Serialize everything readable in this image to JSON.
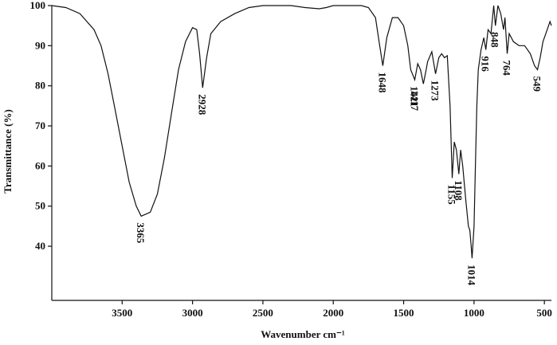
{
  "chart_data": {
    "type": "line",
    "xlabel": "Wavenumber cm⁻¹",
    "ylabel": "Transmittance (%)",
    "xlim": [
      4000,
      450
    ],
    "ylim": [
      26.5,
      100
    ],
    "xticks": [
      3500,
      3000,
      2500,
      2000,
      1500,
      1000,
      500
    ],
    "yticks": [
      40,
      50,
      60,
      70,
      80,
      90,
      100
    ],
    "series": [
      {
        "color": "#111111",
        "x": [
          4000,
          3900,
          3800,
          3700,
          3650,
          3600,
          3550,
          3500,
          3450,
          3400,
          3365,
          3300,
          3250,
          3200,
          3150,
          3100,
          3050,
          3000,
          2970,
          2950,
          2928,
          2900,
          2870,
          2800,
          2700,
          2600,
          2500,
          2400,
          2300,
          2200,
          2100,
          2050,
          2000,
          1900,
          1800,
          1750,
          1700,
          1670,
          1648,
          1620,
          1580,
          1540,
          1500,
          1470,
          1450,
          1421,
          1400,
          1380,
          1360,
          1340,
          1330,
          1300,
          1273,
          1250,
          1230,
          1210,
          1190,
          1170,
          1155,
          1140,
          1125,
          1108,
          1095,
          1080,
          1060,
          1040,
          1030,
          1020,
          1014,
          1000,
          990,
          980,
          970,
          950,
          930,
          916,
          900,
          880,
          860,
          848,
          830,
          810,
          790,
          780,
          764,
          750,
          720,
          680,
          640,
          600,
          570,
          549,
          530,
          510,
          480,
          460,
          450
        ],
        "values": [
          100,
          99.5,
          98,
          94,
          90,
          83,
          74,
          65,
          56,
          50,
          47.5,
          48.5,
          53,
          62,
          73,
          84,
          91,
          94.5,
          94,
          88,
          79.5,
          87,
          93,
          96,
          98,
          99.5,
          100,
          100,
          100,
          99.5,
          99.2,
          99.5,
          100,
          100,
          100,
          99.5,
          97,
          90,
          85,
          92,
          97,
          97,
          95,
          90,
          84,
          81.5,
          85.5,
          84,
          80.5,
          84,
          86,
          88.5,
          83,
          87,
          88,
          87,
          87.5,
          75,
          57,
          66,
          64,
          58,
          64,
          60,
          52,
          45,
          44,
          40,
          37,
          45,
          60,
          75,
          84,
          89,
          92,
          89,
          94,
          93,
          100,
          95,
          100,
          98,
          94,
          97,
          88,
          93,
          91,
          90,
          90,
          88,
          85,
          84,
          87,
          91,
          94,
          96,
          95
        ]
      }
    ],
    "peaks": {
      "x": [
        3365,
        2928,
        1648,
        1421,
        1417,
        1273,
        1155,
        1108,
        1014,
        916,
        848,
        764,
        549
      ],
      "y": [
        47.5,
        79.5,
        85,
        81.5,
        80.5,
        83,
        57,
        58,
        37,
        89,
        95,
        88,
        84
      ]
    }
  }
}
